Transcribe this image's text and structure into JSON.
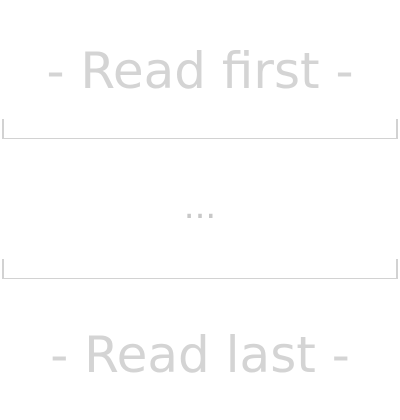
{
  "text": {
    "read_first": "- Read first -",
    "ellipsis": "...",
    "read_last": "- Read last -"
  },
  "colors": {
    "text": "#d4d4d4",
    "rule": "#d2d2d2"
  }
}
